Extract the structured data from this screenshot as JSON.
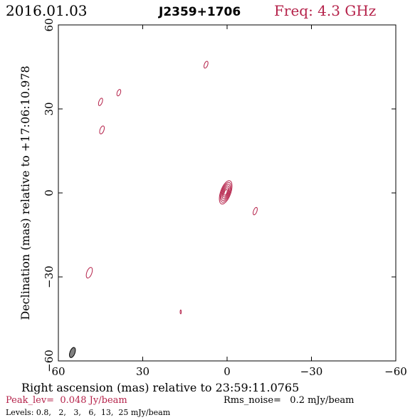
{
  "header": {
    "date": "2016.01.03",
    "source": "J2359+1706",
    "freq": "Freq: 4.3 GHz"
  },
  "footer": {
    "peak": "Peak_lev=  0.048 Jy/beam",
    "rms": "Rms_noise=   0.2 mJy/beam",
    "levels": "Levels: 0.8,   2,   3,   6,  13,  25 mJy/beam"
  },
  "colors": {
    "contour": "#b5224a",
    "axis": "#000000",
    "beam_fill": "#808080"
  },
  "chart_data": {
    "type": "contour",
    "xlabel": "Right ascension (mas) relative to 23:59:11.0765",
    "ylabel": "Declination (mas) relative to +17:06:10.978",
    "xlim": [
      60,
      -60
    ],
    "ylim": [
      -60,
      60
    ],
    "x_ticks": [
      "60",
      "30",
      "0",
      "−30",
      "−60"
    ],
    "y_ticks": [
      "−60",
      "−30",
      "0",
      "30",
      "60"
    ],
    "x_tick_values": [
      60,
      30,
      0,
      -30,
      -60
    ],
    "y_tick_values": [
      -60,
      -30,
      0,
      30,
      60
    ],
    "levels_mJy_per_beam": [
      0.8,
      2,
      3,
      6,
      13,
      25
    ],
    "core": {
      "x": 0.5,
      "y": 0.2,
      "rx": 1.8,
      "ry": 4.4,
      "pa_deg": 20
    },
    "features": [
      {
        "x": 7.5,
        "y": 45.8,
        "rx": 0.6,
        "ry": 1.3,
        "pa_deg": 20
      },
      {
        "x": 45.0,
        "y": 32.5,
        "rx": 0.6,
        "ry": 1.4,
        "pa_deg": 20
      },
      {
        "x": 38.5,
        "y": 35.8,
        "rx": 0.6,
        "ry": 1.2,
        "pa_deg": 20
      },
      {
        "x": 44.5,
        "y": 22.5,
        "rx": 0.7,
        "ry": 1.5,
        "pa_deg": 20
      },
      {
        "x": -10.0,
        "y": -6.5,
        "rx": 0.6,
        "ry": 1.4,
        "pa_deg": 20
      },
      {
        "x": 49.0,
        "y": -28.5,
        "rx": 0.9,
        "ry": 2.0,
        "pa_deg": 20
      },
      {
        "x": 16.5,
        "y": -42.5,
        "rx": 0.2,
        "ry": 0.7,
        "pa_deg": 0
      }
    ],
    "beam": {
      "x": 55.0,
      "y": -57.0,
      "rx": 0.9,
      "ry": 1.9,
      "pa_deg": 20
    }
  }
}
